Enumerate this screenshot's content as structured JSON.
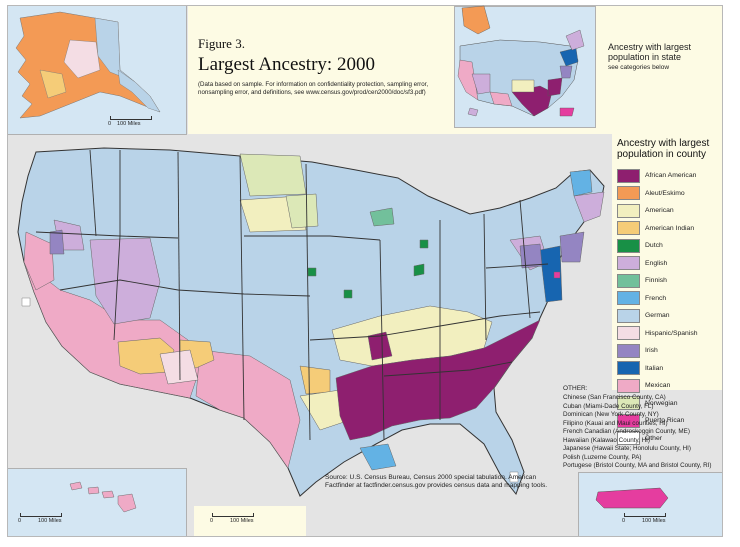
{
  "figure": {
    "label": "Figure 3.",
    "title": "Largest Ancestry: 2000",
    "note": "(Data based on sample. For information on confidentiality protection, sampling error, nonsampling error, and definitions, see www.census.gov/prod/cen2000/doc/sf3.pdf)"
  },
  "state_inset": {
    "title": "Ancestry with largest population in state",
    "subtitle": "see categories below"
  },
  "legend": {
    "title": "Ancestry with largest population in county",
    "items": [
      {
        "label": "African American",
        "color": "#8e1f6f"
      },
      {
        "label": "Aleut/Eskimo",
        "color": "#f39a55"
      },
      {
        "label": "American",
        "color": "#f2efbf"
      },
      {
        "label": "American Indian",
        "color": "#f5cc78"
      },
      {
        "label": "Dutch",
        "color": "#189046"
      },
      {
        "label": "English",
        "color": "#cdaedb"
      },
      {
        "label": "Finnish",
        "color": "#72c09b"
      },
      {
        "label": "French",
        "color": "#63b2e4"
      },
      {
        "label": "German",
        "color": "#b9d3e8"
      },
      {
        "label": "Hispanic/Spanish",
        "color": "#f4dde4"
      },
      {
        "label": "Irish",
        "color": "#9485c2"
      },
      {
        "label": "Italian",
        "color": "#1765b0"
      },
      {
        "label": "Mexican",
        "color": "#efaac6"
      },
      {
        "label": "Norwegian",
        "color": "#dce8b7"
      },
      {
        "label": "Puerto Rican",
        "color": "#e53d9f"
      },
      {
        "label": "Other",
        "color": "#ffffff"
      }
    ]
  },
  "other": {
    "title": "OTHER:",
    "items": [
      "Chinese (San Francisco County, CA)",
      "Cuban (Miami-Dade County, FL)",
      "Dominican (New York County, NY)",
      "Filipino (Kauai and Maui counties, HI)",
      "French Canadian (Androskoggin County, ME)",
      "Hawaiian (Kalawao County, HI)",
      "Japanese (Hawaii State; Honolulu County, HI)",
      "Polish (Luzerne County, PA)",
      "Portugese (Bristol County, MA and Bristol County, RI)"
    ]
  },
  "source": "Source: U.S. Census Bureau, Census 2000 special tabulation. American Factfinder at factfinder.census.gov provides census data and mapping tools.",
  "scales": {
    "alaska": {
      "zero": "0",
      "label": "100 Miles"
    },
    "hawaii": {
      "zero": "0",
      "label": "100 Miles"
    },
    "mainland": {
      "zero": "0",
      "label": "100 Miles"
    },
    "puerto_rico": {
      "zero": "0",
      "label": "100 Miles"
    }
  },
  "colors": {
    "water": "#d4e6f3",
    "land_other": "#e4e4e4",
    "panel": "#fdfbe4",
    "border": "#333333"
  }
}
